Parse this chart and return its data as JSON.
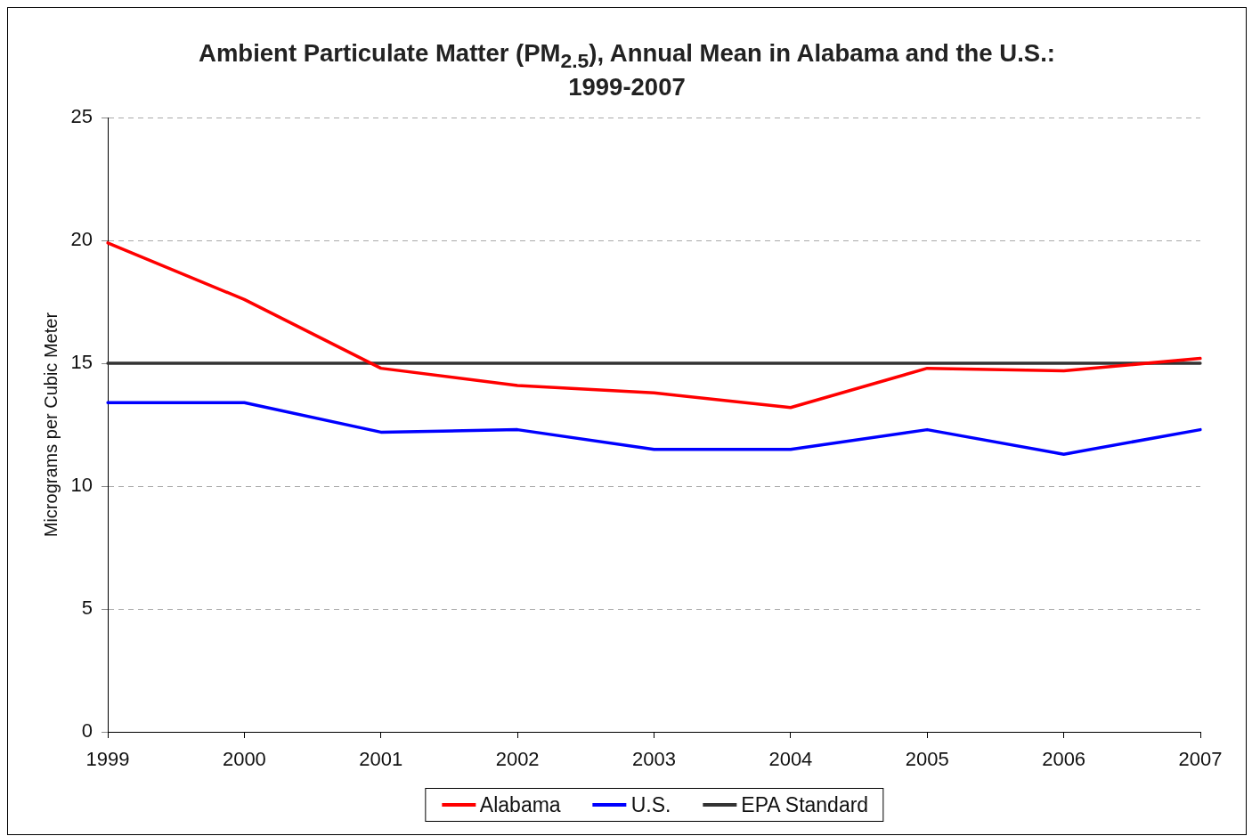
{
  "chart_data": {
    "type": "line",
    "title": "Ambient Particulate Matter (PM$_{2.5}$), Annual Mean in Alabama and the U.S.: 1999-2007",
    "ylabel": "Micrograms per Cubic Meter",
    "categories": [
      "1999",
      "2000",
      "2001",
      "2002",
      "2003",
      "2004",
      "2005",
      "2006",
      "2007"
    ],
    "series": [
      {
        "name": "Alabama",
        "color": "#ff0000",
        "values": [
          19.9,
          17.6,
          14.8,
          14.1,
          13.8,
          13.2,
          14.8,
          14.7,
          15.2
        ]
      },
      {
        "name": "U.S.",
        "color": "#0000ff",
        "values": [
          13.4,
          13.4,
          12.2,
          12.3,
          11.5,
          11.5,
          12.3,
          11.3,
          12.3
        ]
      },
      {
        "name": "EPA Standard",
        "color": "#333333",
        "values": [
          15,
          15,
          15,
          15,
          15,
          15,
          15,
          15,
          15
        ]
      }
    ],
    "ylim": [
      0,
      25
    ],
    "yticks": [
      0,
      5,
      10,
      15,
      20,
      25
    ],
    "grid": "y",
    "legend": "bottom",
    "marker": "none",
    "line_style": "solid"
  }
}
